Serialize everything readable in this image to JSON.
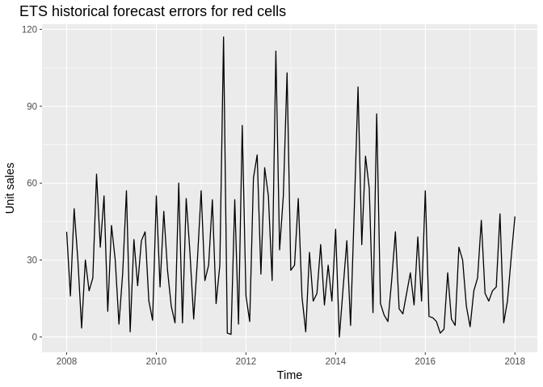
{
  "chart_data": {
    "type": "line",
    "title": "ETS historical forecast errors for red cells",
    "xlabel": "Time",
    "ylabel": "Unit sales",
    "xlim": [
      2007.45,
      2018.5
    ],
    "ylim": [
      -6,
      122
    ],
    "x_ticks": [
      2008,
      2010,
      2012,
      2014,
      2016,
      2018
    ],
    "x_tick_labels": [
      "2008",
      "2010",
      "2012",
      "2014",
      "2016",
      "2018"
    ],
    "y_ticks": [
      0,
      30,
      60,
      90,
      120
    ],
    "y_tick_labels": [
      "0",
      "30",
      "60",
      "90",
      "120"
    ],
    "grid": true,
    "series": [
      {
        "start": 2008,
        "frequency": 12,
        "values": [
          41,
          16,
          50,
          30,
          3.5,
          30,
          18,
          23,
          63.5,
          35,
          55,
          10,
          43.5,
          30,
          5,
          25,
          57,
          2,
          38,
          20,
          37.5,
          41,
          14,
          6.5,
          55,
          19.5,
          49,
          26,
          12,
          5.5,
          60,
          5.5,
          54,
          33,
          7,
          30,
          57,
          22,
          28,
          53.5,
          13,
          28,
          117,
          1.5,
          1,
          53.5,
          5,
          82.5,
          16,
          6,
          62,
          71,
          24.5,
          66,
          55,
          22,
          111.5,
          34,
          55,
          103,
          26,
          28,
          54,
          15.5,
          2,
          33,
          14,
          17,
          36,
          12.5,
          28,
          14,
          42,
          0,
          19,
          37.5,
          4.5,
          50,
          97.5,
          36,
          70.5,
          58,
          9.5,
          87,
          13,
          8.5,
          6,
          22,
          41,
          11,
          9,
          17,
          25,
          12.5,
          39,
          14,
          57,
          8,
          7.5,
          6,
          1.5,
          3,
          25,
          7,
          4.5,
          35,
          30,
          12,
          4,
          18,
          23,
          45.5,
          17,
          14,
          18,
          19.5,
          48,
          5.5,
          14,
          31,
          47
        ]
      }
    ]
  }
}
